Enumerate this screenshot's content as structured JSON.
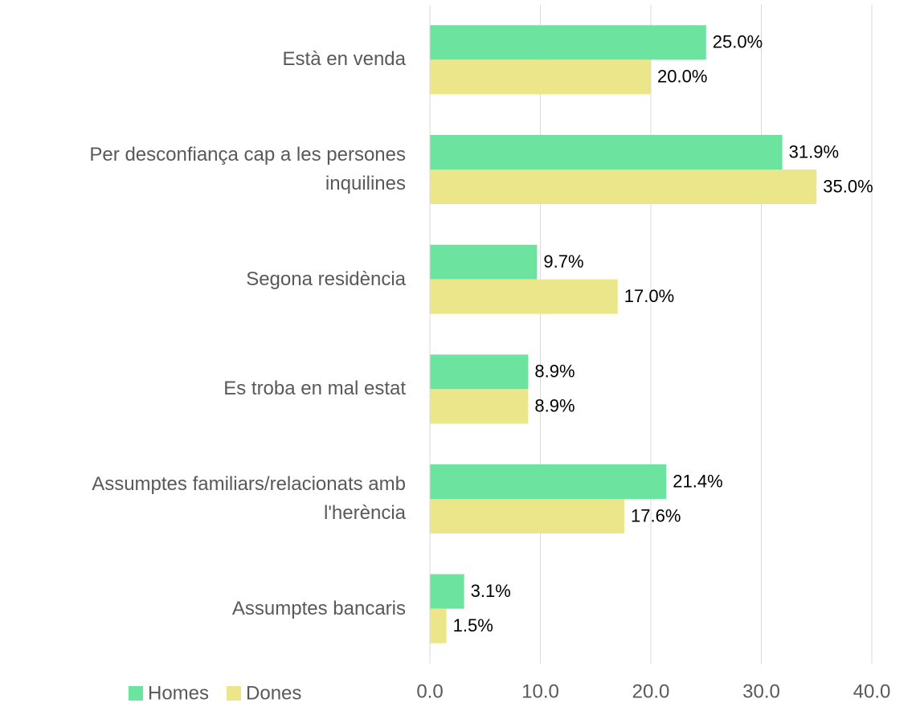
{
  "chart_data": {
    "type": "hbar",
    "categories": [
      "Està en venda",
      "Per desconfiança cap a les persones inquilines",
      "Segona residència",
      "Es troba en mal estat",
      "Assumptes familiars/relacionats amb l'herència",
      "Assumptes bancaris"
    ],
    "series": [
      {
        "name": "Homes",
        "color": "#6de3a0",
        "values": [
          25.0,
          31.9,
          9.7,
          8.9,
          21.4,
          3.1
        ],
        "value_labels": [
          "25.0%",
          "31.9%",
          "9.7%",
          "8.9%",
          "21.4%",
          "3.1%"
        ]
      },
      {
        "name": "Dones",
        "color": "#ebe68a",
        "values": [
          20.0,
          35.0,
          17.0,
          8.9,
          17.6,
          1.5
        ],
        "value_labels": [
          "20.0%",
          "35.0%",
          "17.0%",
          "8.9%",
          "17.6%",
          "1.5%"
        ]
      }
    ],
    "xlim": [
      0,
      40
    ],
    "xticks": [
      {
        "value": 0,
        "label": "0.0"
      },
      {
        "value": 10,
        "label": "10.0"
      },
      {
        "value": 20,
        "label": "20.0"
      },
      {
        "value": 30,
        "label": "30.0"
      },
      {
        "value": 40,
        "label": "40.0"
      }
    ],
    "grid": true,
    "legend": "bottom-left"
  }
}
